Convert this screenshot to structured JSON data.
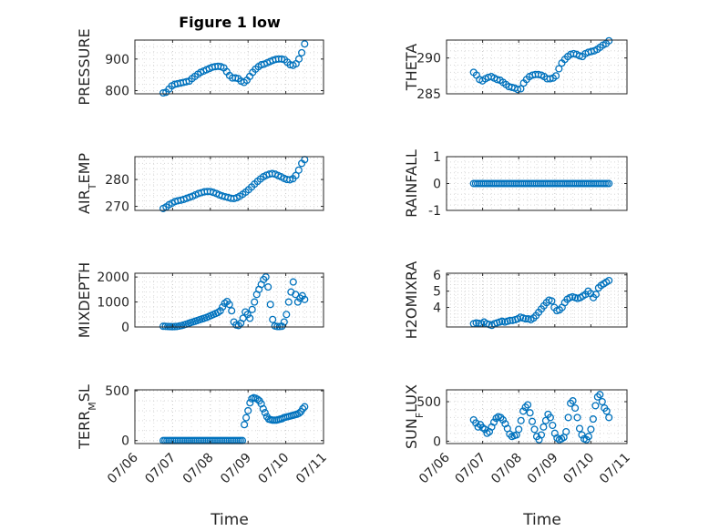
{
  "figure": {
    "title": "Figure 1 low",
    "xlabel": "Time",
    "marker_color": "#0072BD",
    "x_ticks": [
      "07/06",
      "07/07",
      "07/08",
      "07/09",
      "07/10",
      "07/11"
    ],
    "x_range": [
      "07/06",
      "07/11"
    ]
  },
  "chart_data": [
    {
      "type": "scatter",
      "ylabel": "PRESSURE",
      "ylim": [
        790,
        960
      ],
      "yticks": [
        800,
        900
      ],
      "grid": true,
      "x_start": "07/06 18:00",
      "x_end": "07/10 12:00",
      "y": [
        793,
        795,
        805,
        815,
        820,
        822,
        824,
        826,
        828,
        830,
        838,
        845,
        852,
        858,
        862,
        866,
        870,
        874,
        876,
        877,
        876,
        872,
        860,
        848,
        840,
        840,
        838,
        830,
        826,
        833,
        845,
        858,
        868,
        876,
        882,
        884,
        888,
        892,
        896,
        899,
        900,
        900,
        898,
        890,
        882,
        880,
        885,
        900,
        920,
        948
      ]
    },
    {
      "type": "scatter",
      "ylabel": "THETA",
      "ylim": [
        285,
        292.5
      ],
      "yticks": [
        285,
        290
      ],
      "grid": true,
      "x_start": "07/06 18:00",
      "x_end": "07/10 12:00",
      "y": [
        288.0,
        287.6,
        287.0,
        286.8,
        287.1,
        287.3,
        287.4,
        287.2,
        287.0,
        286.9,
        286.6,
        286.3,
        286.0,
        285.9,
        285.8,
        285.6,
        285.7,
        286.5,
        287.0,
        287.4,
        287.6,
        287.7,
        287.7,
        287.6,
        287.4,
        287.1,
        287.1,
        287.2,
        287.5,
        288.5,
        289.3,
        289.8,
        290.2,
        290.5,
        290.6,
        290.5,
        290.3,
        290.2,
        290.6,
        290.8,
        290.9,
        291.0,
        291.2,
        291.5,
        291.8,
        292.0,
        292.4
      ]
    },
    {
      "type": "scatter",
      "ylabel": "AIR_TEMP",
      "ylim": [
        268.5,
        288.5
      ],
      "yticks": [
        270,
        280
      ],
      "grid": true,
      "x_start": "07/06 18:00",
      "x_end": "07/10 12:00",
      "y": [
        269.2,
        269.8,
        270.6,
        271.2,
        271.8,
        272.1,
        272.3,
        272.6,
        273.0,
        273.4,
        273.8,
        274.3,
        274.8,
        275.1,
        275.4,
        275.5,
        275.5,
        275.2,
        274.8,
        274.3,
        273.9,
        273.6,
        273.3,
        273.0,
        272.9,
        273.2,
        273.8,
        274.5,
        275.3,
        276.2,
        277.2,
        278.3,
        279.3,
        280.2,
        281.0,
        281.6,
        282.0,
        282.2,
        282.0,
        281.5,
        281.0,
        280.4,
        280.0,
        279.9,
        280.3,
        281.5,
        283.5,
        286.0,
        287.4
      ]
    },
    {
      "type": "scatter",
      "ylabel": "RAINFALL",
      "ylim": [
        -1,
        1
      ],
      "yticks": [
        -1,
        0,
        1
      ],
      "grid": true,
      "x_start": "07/06 18:00",
      "x_end": "07/10 12:00",
      "y": [
        0,
        0,
        0,
        0,
        0,
        0,
        0,
        0,
        0,
        0,
        0,
        0,
        0,
        0,
        0,
        0,
        0,
        0,
        0,
        0,
        0,
        0,
        0,
        0,
        0,
        0,
        0,
        0,
        0,
        0,
        0,
        0,
        0,
        0,
        0,
        0,
        0,
        0,
        0,
        0,
        0,
        0,
        0,
        0,
        0,
        0,
        0,
        0,
        0,
        0,
        0,
        0,
        0,
        0,
        0,
        0,
        0,
        0,
        0,
        0,
        0,
        0,
        0,
        0,
        0,
        0,
        0,
        0,
        0,
        0
      ]
    },
    {
      "type": "scatter",
      "ylabel": "MIXDEPTH",
      "ylim": [
        0,
        2150
      ],
      "yticks": [
        0,
        1000,
        2000
      ],
      "grid": true,
      "x_start": "07/06 18:00",
      "x_end": "07/10 12:00",
      "y": [
        30,
        25,
        20,
        15,
        12,
        15,
        22,
        35,
        55,
        80,
        110,
        140,
        170,
        200,
        230,
        260,
        290,
        320,
        350,
        380,
        420,
        460,
        500,
        540,
        580,
        650,
        800,
        950,
        1020,
        900,
        650,
        200,
        80,
        60,
        150,
        350,
        600,
        500,
        350,
        700,
        1000,
        1300,
        1500,
        1700,
        1900,
        2000,
        1600,
        900,
        300,
        40,
        20,
        20,
        30,
        200,
        500,
        1000,
        1400,
        1800,
        1300,
        1000,
        1150,
        1250,
        1100
      ]
    },
    {
      "type": "scatter",
      "ylabel": "H2OMIXRA",
      "ylim": [
        2.8,
        6.1
      ],
      "yticks": [
        4,
        5,
        6
      ],
      "grid": true,
      "x_start": "07/06 18:00",
      "x_end": "07/10 12:00",
      "y": [
        3.0,
        3.05,
        3.02,
        3.0,
        3.1,
        3.0,
        2.95,
        2.9,
        3.0,
        3.05,
        3.1,
        3.15,
        3.1,
        3.15,
        3.2,
        3.2,
        3.25,
        3.3,
        3.4,
        3.35,
        3.3,
        3.3,
        3.25,
        3.35,
        3.5,
        3.7,
        3.9,
        4.1,
        4.3,
        4.45,
        4.4,
        4.0,
        3.8,
        3.85,
        4.0,
        4.3,
        4.5,
        4.6,
        4.65,
        4.6,
        4.55,
        4.6,
        4.7,
        4.8,
        5.0,
        4.85,
        4.6,
        4.8,
        5.2,
        5.35,
        5.45,
        5.55,
        5.65
      ]
    },
    {
      "type": "scatter",
      "ylabel": "TERR_MSL",
      "ylim": [
        -30,
        510
      ],
      "yticks": [
        0,
        500
      ],
      "grid": true,
      "x_start": "07/06 18:00",
      "x_end": "07/10 12:00",
      "y": [
        0,
        0,
        0,
        0,
        0,
        0,
        0,
        0,
        0,
        0,
        0,
        0,
        0,
        0,
        0,
        0,
        0,
        0,
        0,
        0,
        0,
        0,
        0,
        0,
        0,
        0,
        0,
        0,
        0,
        0,
        0,
        0,
        0,
        0,
        0,
        0,
        0,
        0,
        0,
        0,
        0,
        0,
        0,
        160,
        230,
        300,
        380,
        420,
        430,
        425,
        415,
        400,
        370,
        320,
        280,
        240,
        215,
        210,
        205,
        205,
        205,
        210,
        215,
        220,
        230,
        235,
        240,
        245,
        250,
        255,
        260,
        265,
        275,
        290,
        320,
        340
      ]
    },
    {
      "type": "scatter",
      "ylabel": "SUN_FLUX",
      "ylim": [
        -30,
        650
      ],
      "yticks": [
        0,
        500
      ],
      "grid": true,
      "x_start": "07/06 18:00",
      "x_end": "07/10 12:00",
      "y": [
        270,
        230,
        180,
        210,
        170,
        150,
        100,
        120,
        180,
        240,
        290,
        310,
        300,
        270,
        220,
        160,
        90,
        60,
        70,
        80,
        150,
        260,
        380,
        430,
        460,
        360,
        250,
        150,
        60,
        20,
        80,
        180,
        260,
        340,
        300,
        200,
        100,
        40,
        20,
        30,
        50,
        120,
        300,
        480,
        510,
        420,
        300,
        160,
        80,
        30,
        20,
        60,
        150,
        280,
        450,
        560,
        590,
        500,
        420,
        380,
        300
      ]
    }
  ]
}
